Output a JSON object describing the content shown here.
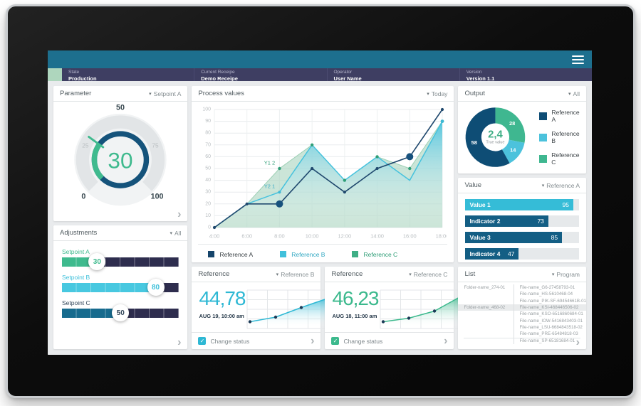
{
  "topbar": {
    "menu_icon": "hamburger-menu"
  },
  "header": {
    "columns": [
      {
        "label": "State",
        "value": "Production"
      },
      {
        "label": "Current Receipe",
        "value": "Demo Receipe"
      },
      {
        "label": "Operator",
        "value": "User Name"
      },
      {
        "label": "Version",
        "value": "Version 1.1"
      }
    ]
  },
  "widgets": {
    "parameter": {
      "title": "Parameter",
      "dropdown": "Setpoint A",
      "value": 30,
      "min": 0,
      "max": 100,
      "major_labels": [
        0,
        50,
        100
      ],
      "minor_labels": [
        25,
        75
      ],
      "accent": "#3fba8e",
      "ring_color": "#15537b"
    },
    "adjustments": {
      "title": "Adjustments",
      "dropdown": "All",
      "sliders": [
        {
          "label": "Setpoint A",
          "value": 30,
          "fill": "#3fba8e",
          "text_color": "#3fba8e"
        },
        {
          "label": "Setpoint B",
          "value": 80,
          "fill": "#48c8e0",
          "text_color": "#3ec0da"
        },
        {
          "label": "Setpoint C",
          "value": 50,
          "fill": "#176b8e",
          "text_color": "#33475a"
        }
      ]
    },
    "process": {
      "title": "Process values",
      "dropdown": "Today",
      "legend": [
        {
          "label": "Reference A",
          "color": "#16456b",
          "text_color": "#3c4347"
        },
        {
          "label": "Reference B",
          "color": "#41c0db",
          "text_color": "#31a8c2"
        },
        {
          "label": "Reference C",
          "color": "#3fae85",
          "text_color": "#2f9e77"
        }
      ]
    },
    "output": {
      "title": "Output",
      "dropdown": "All",
      "center_value": "2,4",
      "center_label": "True value",
      "segments": [
        {
          "label": "Reference C",
          "value": 28,
          "color": "#3fb790"
        },
        {
          "label": "Reference B",
          "value": 14,
          "color": "#4cc2dc"
        },
        {
          "label": "Reference A",
          "value": 58,
          "color": "#0e4d75"
        }
      ],
      "legend": [
        {
          "label": "Reference A",
          "color": "#0e4d75"
        },
        {
          "label": "Reference B",
          "color": "#4cc2dc"
        },
        {
          "label": "Reference C",
          "color": "#3fb790"
        }
      ]
    },
    "value": {
      "title": "Value",
      "dropdown": "Reference A",
      "max": 100,
      "bars": [
        {
          "label": "Value 1",
          "value": 95,
          "color": "#35bcd7"
        },
        {
          "label": "Indicator 2",
          "value": 73,
          "color": "#135e84"
        },
        {
          "label": "Value 3",
          "value": 85,
          "color": "#135e84"
        },
        {
          "label": "Indicator 4",
          "value": 47,
          "color": "#135e84"
        }
      ]
    },
    "list": {
      "title": "List",
      "dropdown": "Program",
      "highlight_row": 3,
      "folders": {
        "0": "Folder-name_274-01",
        "3": "Folder-name_468-02"
      },
      "files": [
        "File-name_G6-27458793-01",
        "File-name_HS-5610468-04",
        "File-name_PIK-SF-69454661B-01",
        "File-name_KSI-468446506-02",
        "File-name_KSO-6516860684-01",
        "File-name_IOW-5416843403-01",
        "File-name_LSU-6684843518-02",
        "File-name_PRE-65484818-03",
        "File-name_SP-65181684-01"
      ]
    },
    "reference_b": {
      "title": "Reference",
      "dropdown": "Reference B",
      "value": "44,78",
      "timestamp": "AUG 19, 10:00 am",
      "checkbox_label": "Change status",
      "checked": true,
      "accent": "#2eb8d4",
      "trend": [
        15,
        28,
        55,
        80
      ]
    },
    "reference_c": {
      "title": "Reference",
      "dropdown": "Reference C",
      "value": "46,23",
      "timestamp": "AUG 18, 11:00 am",
      "checkbox_label": "Change status",
      "checked": true,
      "accent": "#3cb98d",
      "trend": [
        15,
        25,
        45,
        85
      ]
    }
  },
  "chart_data": [
    {
      "id": "process-values",
      "type": "area",
      "title": "Process values",
      "x": [
        "4:00",
        "6:00",
        "8:00",
        "10:00",
        "12:00",
        "14:00",
        "16:00",
        "18:00"
      ],
      "series": [
        {
          "name": "Reference A",
          "type": "line",
          "color": "#20496e",
          "values": [
            0,
            20,
            20,
            50,
            30,
            50,
            60,
            100
          ],
          "emphasized_x": [
            "8:00",
            "16:00"
          ]
        },
        {
          "name": "Reference B",
          "type": "area",
          "color": "#41c0db",
          "values": [
            0,
            20,
            30,
            70,
            40,
            60,
            40,
            90
          ]
        },
        {
          "name": "Reference C",
          "type": "area",
          "color": "#3fae85",
          "values": [
            0,
            20,
            50,
            70,
            40,
            60,
            50,
            90
          ]
        }
      ],
      "ylim": [
        0,
        100
      ],
      "ytick_step": 10,
      "grid": true,
      "legend_position": "bottom",
      "annotations": [
        {
          "text": "Y1 2",
          "x": "8:00",
          "y": 50,
          "color": "#2f9e77"
        },
        {
          "text": "Y2 1",
          "x": "8:00",
          "y": 30,
          "color": "#35aac6"
        }
      ]
    },
    {
      "id": "parameter-gauge",
      "type": "gauge",
      "value": 30,
      "min": 0,
      "max": 100,
      "tick_labels": [
        0,
        25,
        50,
        75,
        100
      ]
    },
    {
      "id": "output-donut",
      "type": "pie",
      "center_value": "2,4",
      "center_label": "True value",
      "slices": [
        {
          "label": "Reference C",
          "value": 28
        },
        {
          "label": "Reference B",
          "value": 14
        },
        {
          "label": "Reference A",
          "value": 58
        }
      ]
    },
    {
      "id": "value-bars",
      "type": "bar",
      "categories": [
        "Value 1",
        "Indicator 2",
        "Value 3",
        "Indicator 4"
      ],
      "values": [
        95,
        73,
        85,
        47
      ],
      "xlim": [
        0,
        100
      ]
    },
    {
      "id": "reference-b-trend",
      "type": "line",
      "values": [
        15,
        28,
        55,
        80
      ]
    },
    {
      "id": "reference-c-trend",
      "type": "line",
      "values": [
        15,
        25,
        45,
        85
      ]
    }
  ]
}
